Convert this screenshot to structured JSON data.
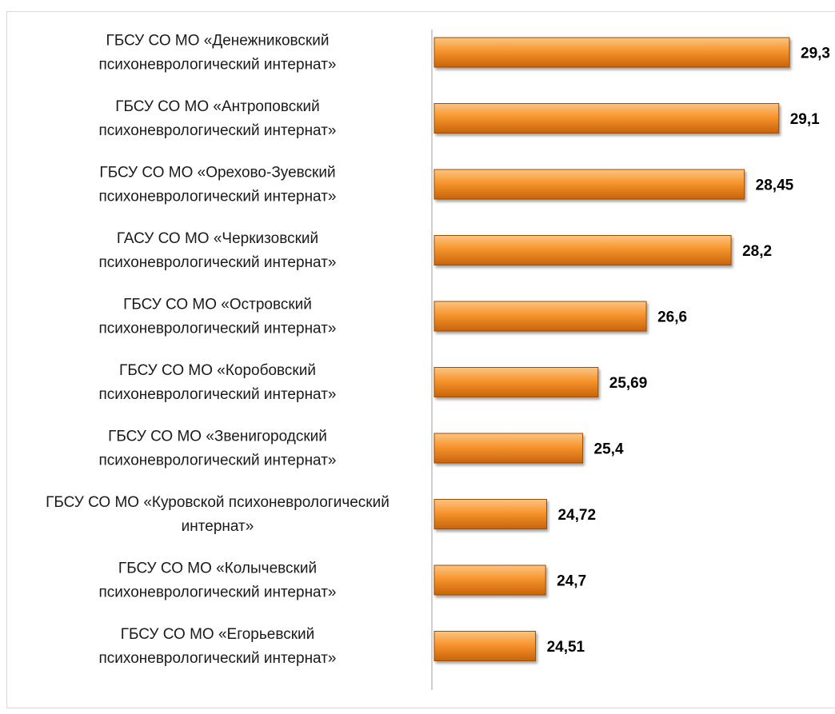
{
  "header": {
    "title_fragment": ""
  },
  "colors": {
    "bar_top": "#fbc583",
    "bar_mid": "#f7952e",
    "bar_bottom": "#c8630a",
    "bar_edge": "#9c4d05",
    "axis": "#bfbfbf"
  },
  "chart_data": {
    "type": "bar",
    "orientation": "horizontal",
    "categories": [
      [
        "ГБСУ СО МО «Денежниковский",
        "психоневрологический интернат»"
      ],
      [
        "ГБСУ СО МО «Антроповский",
        "психоневрологический интернат»"
      ],
      [
        "ГБСУ СО МО «Орехово-Зуевский",
        "психоневрологический интернат»"
      ],
      [
        "ГАСУ СО МО «Черкизовский",
        "психоневрологический интернат»"
      ],
      [
        "ГБСУ СО МО «Островский",
        "психоневрологический интернат»"
      ],
      [
        "ГБСУ СО МО «Коробовский",
        "психоневрологический интернат»"
      ],
      [
        "ГБСУ СО МО «Звенигородский",
        "психоневрологический интернат»"
      ],
      [
        "ГБСУ СО МО «Куровской психоневрологический",
        "интернат»"
      ],
      [
        "ГБСУ СО МО «Колычевский",
        "психоневрологический интернат»"
      ],
      [
        "ГБСУ СО МО «Егорьевский",
        "психоневрологический интернат»"
      ]
    ],
    "values": [
      29.3,
      29.1,
      28.45,
      28.2,
      26.6,
      25.69,
      25.4,
      24.72,
      24.7,
      24.51
    ],
    "value_labels": [
      "29,3",
      "29,1",
      "28,45",
      "28,2",
      "26,6",
      "25,69",
      "25,4",
      "24,72",
      "24,7",
      "24,51"
    ],
    "xlim": [
      22.6,
      29.3
    ],
    "title": "",
    "xlabel": "",
    "ylabel": "",
    "grid": false,
    "legend": "none"
  }
}
